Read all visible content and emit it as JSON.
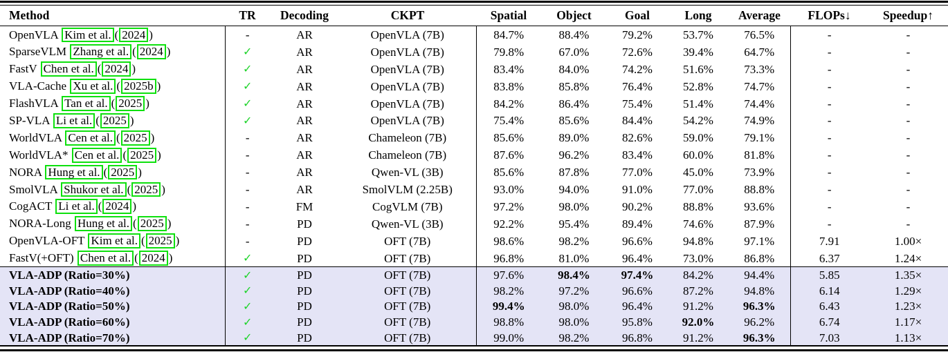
{
  "table": {
    "check_color": "#1ed32a",
    "link_box_color": "#0de00d",
    "highlight_color": "#e4e4f6",
    "check_mark": "✓",
    "dash_mark": "-",
    "columns": [
      {
        "key": "method",
        "label": "Method"
      },
      {
        "key": "tr",
        "label": "TR"
      },
      {
        "key": "decoding",
        "label": "Decoding"
      },
      {
        "key": "ckpt",
        "label": "CKPT"
      },
      {
        "key": "spatial",
        "label": "Spatial"
      },
      {
        "key": "object",
        "label": "Object"
      },
      {
        "key": "goal",
        "label": "Goal"
      },
      {
        "key": "long",
        "label": "Long"
      },
      {
        "key": "average",
        "label": "Average"
      },
      {
        "key": "flops",
        "label": "FLOPs↓"
      },
      {
        "key": "speedup",
        "label": "Speedup↑"
      }
    ],
    "rows": [
      {
        "method": "OpenVLA",
        "cite_author": "Kim et al.",
        "cite_year": "2024",
        "tr": "-",
        "decoding": "AR",
        "ckpt": "OpenVLA (7B)",
        "spatial": "84.7%",
        "object": "88.4%",
        "goal": "79.2%",
        "long": "53.7%",
        "average": "76.5%",
        "flops": "-",
        "speedup": "-",
        "bold": [],
        "highlight": false
      },
      {
        "method": "SparseVLM",
        "cite_author": "Zhang et al.",
        "cite_year": "2024",
        "tr": "✓",
        "decoding": "AR",
        "ckpt": "OpenVLA (7B)",
        "spatial": "79.8%",
        "object": "67.0%",
        "goal": "72.6%",
        "long": "39.4%",
        "average": "64.7%",
        "flops": "-",
        "speedup": "-",
        "bold": [],
        "highlight": false
      },
      {
        "method": "FastV",
        "cite_author": "Chen et al.",
        "cite_year": "2024",
        "tr": "✓",
        "decoding": "AR",
        "ckpt": "OpenVLA (7B)",
        "spatial": "83.4%",
        "object": "84.0%",
        "goal": "74.2%",
        "long": "51.6%",
        "average": "73.3%",
        "flops": "-",
        "speedup": "-",
        "bold": [],
        "highlight": false
      },
      {
        "method": "VLA-Cache",
        "cite_author": "Xu et al.",
        "cite_year": "2025b",
        "tr": "✓",
        "decoding": "AR",
        "ckpt": "OpenVLA (7B)",
        "spatial": "83.8%",
        "object": "85.8%",
        "goal": "76.4%",
        "long": "52.8%",
        "average": "74.7%",
        "flops": "-",
        "speedup": "-",
        "bold": [],
        "highlight": false
      },
      {
        "method": "FlashVLA",
        "cite_author": "Tan et al.",
        "cite_year": "2025",
        "tr": "✓",
        "decoding": "AR",
        "ckpt": "OpenVLA (7B)",
        "spatial": "84.2%",
        "object": "86.4%",
        "goal": "75.4%",
        "long": "51.4%",
        "average": "74.4%",
        "flops": "-",
        "speedup": "-",
        "bold": [],
        "highlight": false
      },
      {
        "method": "SP-VLA",
        "cite_author": "Li et al.",
        "cite_year": "2025",
        "tr": "✓",
        "decoding": "AR",
        "ckpt": "OpenVLA (7B)",
        "spatial": "75.4%",
        "object": "85.6%",
        "goal": "84.4%",
        "long": "54.2%",
        "average": "74.9%",
        "flops": "-",
        "speedup": "-",
        "bold": [],
        "highlight": false
      },
      {
        "method": "WorldVLA",
        "cite_author": "Cen et al.",
        "cite_year": "2025",
        "tr": "-",
        "decoding": "AR",
        "ckpt": "Chameleon (7B)",
        "spatial": "85.6%",
        "object": "89.0%",
        "goal": "82.6%",
        "long": "59.0%",
        "average": "79.1%",
        "flops": "-",
        "speedup": "-",
        "bold": [],
        "highlight": false
      },
      {
        "method": "WorldVLA*",
        "cite_author": "Cen et al.",
        "cite_year": "2025",
        "tr": "-",
        "decoding": "AR",
        "ckpt": "Chameleon (7B)",
        "spatial": "87.6%",
        "object": "96.2%",
        "goal": "83.4%",
        "long": "60.0%",
        "average": "81.8%",
        "flops": "-",
        "speedup": "-",
        "bold": [],
        "highlight": false
      },
      {
        "method": "NORA",
        "cite_author": "Hung et al.",
        "cite_year": "2025",
        "tr": "-",
        "decoding": "AR",
        "ckpt": "Qwen-VL (3B)",
        "spatial": "85.6%",
        "object": "87.8%",
        "goal": "77.0%",
        "long": "45.0%",
        "average": "73.9%",
        "flops": "-",
        "speedup": "-",
        "bold": [],
        "highlight": false
      },
      {
        "method": "SmolVLA",
        "cite_author": "Shukor et al.",
        "cite_year": "2025",
        "tr": "-",
        "decoding": "AR",
        "ckpt": "SmolVLM (2.25B)",
        "spatial": "93.0%",
        "object": "94.0%",
        "goal": "91.0%",
        "long": "77.0%",
        "average": "88.8%",
        "flops": "-",
        "speedup": "-",
        "bold": [],
        "highlight": false
      },
      {
        "method": "CogACT",
        "cite_author": "Li et al.",
        "cite_year": "2024",
        "tr": "-",
        "decoding": "FM",
        "ckpt": "CogVLM (7B)",
        "spatial": "97.2%",
        "object": "98.0%",
        "goal": "90.2%",
        "long": "88.8%",
        "average": "93.6%",
        "flops": "-",
        "speedup": "-",
        "bold": [],
        "highlight": false
      },
      {
        "method": "NORA-Long",
        "cite_author": "Hung et al.",
        "cite_year": "2025",
        "tr": "-",
        "decoding": "PD",
        "ckpt": "Qwen-VL (3B)",
        "spatial": "92.2%",
        "object": "95.4%",
        "goal": "89.4%",
        "long": "74.6%",
        "average": "87.9%",
        "flops": "-",
        "speedup": "-",
        "bold": [],
        "highlight": false
      },
      {
        "method": "OpenVLA-OFT",
        "cite_author": "Kim et al.",
        "cite_year": "2025",
        "tr": "-",
        "decoding": "PD",
        "ckpt": "OFT (7B)",
        "spatial": "98.6%",
        "object": "98.2%",
        "goal": "96.6%",
        "long": "94.8%",
        "average": "97.1%",
        "flops": "7.91",
        "speedup": "1.00×",
        "bold": [],
        "highlight": false
      },
      {
        "method": "FastV(+OFT)",
        "cite_author": "Chen et al.",
        "cite_year": "2024",
        "tr": "✓",
        "decoding": "PD",
        "ckpt": "OFT (7B)",
        "spatial": "96.8%",
        "object": "81.0%",
        "goal": "96.4%",
        "long": "73.0%",
        "average": "86.8%",
        "flops": "6.37",
        "speedup": "1.24×",
        "bold": [],
        "highlight": false
      },
      {
        "method": "VLA-ADP (Ratio=30%)",
        "cite_author": null,
        "cite_year": null,
        "tr": "✓",
        "decoding": "PD",
        "ckpt": "OFT (7B)",
        "spatial": "97.6%",
        "object": "98.4%",
        "goal": "97.4%",
        "long": "84.2%",
        "average": "94.4%",
        "flops": "5.85",
        "speedup": "1.35×",
        "bold": [
          "object",
          "goal"
        ],
        "highlight": true
      },
      {
        "method": "VLA-ADP (Ratio=40%)",
        "cite_author": null,
        "cite_year": null,
        "tr": "✓",
        "decoding": "PD",
        "ckpt": "OFT (7B)",
        "spatial": "98.2%",
        "object": "97.2%",
        "goal": "96.6%",
        "long": "87.2%",
        "average": "94.8%",
        "flops": "6.14",
        "speedup": "1.29×",
        "bold": [],
        "highlight": true
      },
      {
        "method": "VLA-ADP (Ratio=50%)",
        "cite_author": null,
        "cite_year": null,
        "tr": "✓",
        "decoding": "PD",
        "ckpt": "OFT (7B)",
        "spatial": "99.4%",
        "object": "98.0%",
        "goal": "96.4%",
        "long": "91.2%",
        "average": "96.3%",
        "flops": "6.43",
        "speedup": "1.23×",
        "bold": [
          "spatial",
          "average"
        ],
        "highlight": true
      },
      {
        "method": "VLA-ADP (Ratio=60%)",
        "cite_author": null,
        "cite_year": null,
        "tr": "✓",
        "decoding": "PD",
        "ckpt": "OFT (7B)",
        "spatial": "98.8%",
        "object": "98.0%",
        "goal": "95.8%",
        "long": "92.0%",
        "average": "96.2%",
        "flops": "6.74",
        "speedup": "1.17×",
        "bold": [
          "long"
        ],
        "highlight": true
      },
      {
        "method": "VLA-ADP (Ratio=70%)",
        "cite_author": null,
        "cite_year": null,
        "tr": "✓",
        "decoding": "PD",
        "ckpt": "OFT (7B)",
        "spatial": "99.0%",
        "object": "98.2%",
        "goal": "96.8%",
        "long": "91.2%",
        "average": "96.3%",
        "flops": "7.03",
        "speedup": "1.13×",
        "bold": [
          "average"
        ],
        "highlight": true
      }
    ]
  }
}
